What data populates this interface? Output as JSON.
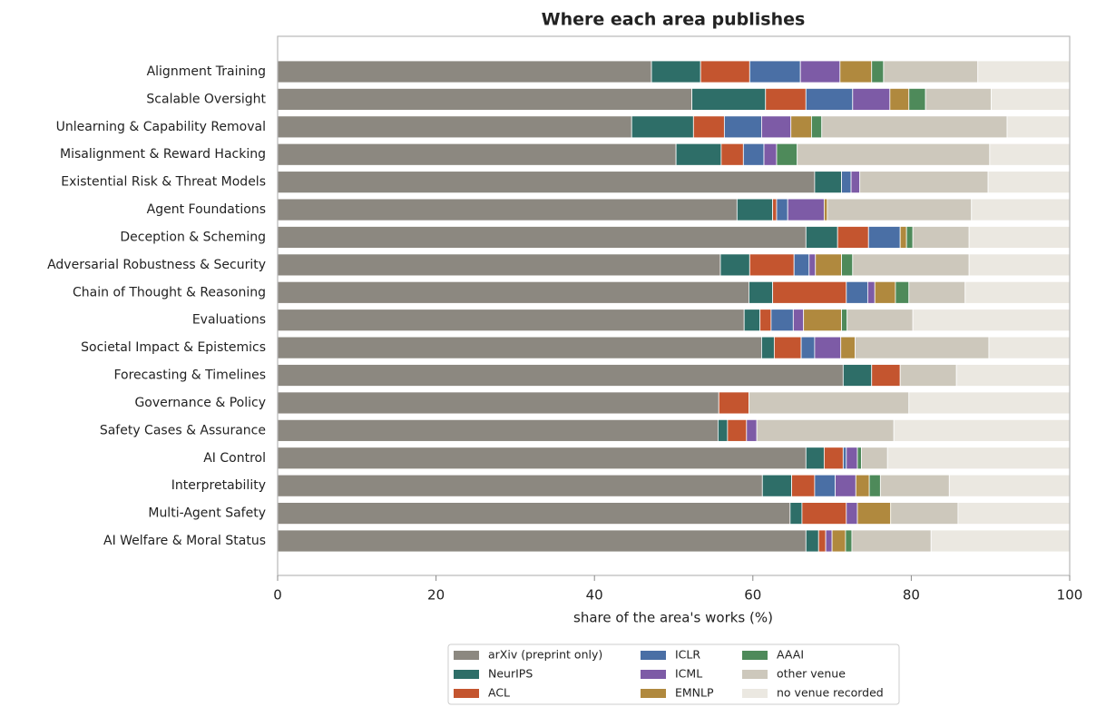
{
  "chart_data": {
    "type": "stacked_barh",
    "title": "Where each area publishes",
    "xlabel": "share of the area's works (%)",
    "categories": [
      "Alignment Training",
      "Scalable Oversight",
      "Unlearning & Capability Removal",
      "Misalignment & Reward Hacking",
      "Existential Risk & Threat Models",
      "Agent Foundations",
      "Deception & Scheming",
      "Adversarial Robustness & Security",
      "Chain of Thought & Reasoning",
      "Evaluations",
      "Societal Impact & Epistemics",
      "Forecasting & Timelines",
      "Governance & Policy",
      "Safety Cases & Assurance",
      "AI Control",
      "Interpretability",
      "Multi-Agent Safety",
      "AI Welfare & Moral Status"
    ],
    "series": [
      {
        "name": "arXiv (preprint only)",
        "color": "#8c8880",
        "values": [
          47.2,
          52.3,
          44.7,
          50.3,
          67.8,
          58.0,
          66.7,
          55.9,
          59.5,
          58.9,
          61.1,
          71.4,
          55.7,
          55.6,
          66.7,
          61.2,
          64.7,
          66.7
        ]
      },
      {
        "name": "NeurIPS",
        "color": "#2e6e68",
        "values": [
          6.2,
          9.3,
          7.8,
          5.7,
          3.4,
          4.5,
          4.0,
          3.7,
          3.0,
          2.0,
          1.6,
          3.6,
          0,
          1.2,
          2.3,
          3.7,
          1.5,
          1.6
        ]
      },
      {
        "name": "ACL",
        "color": "#c4552f",
        "values": [
          6.2,
          5.1,
          3.9,
          2.8,
          0,
          0.5,
          3.9,
          5.6,
          9.3,
          1.4,
          3.4,
          3.6,
          3.8,
          2.4,
          2.4,
          2.9,
          5.6,
          0.9
        ]
      },
      {
        "name": "ICLR",
        "color": "#4a6fa5",
        "values": [
          6.4,
          5.9,
          4.7,
          2.6,
          1.2,
          1.4,
          4.0,
          1.9,
          2.7,
          2.8,
          1.7,
          0,
          0,
          0,
          0.4,
          2.6,
          0,
          0
        ]
      },
      {
        "name": "ICML",
        "color": "#7d5ba6",
        "values": [
          5.0,
          4.7,
          3.7,
          1.6,
          1.1,
          4.6,
          0,
          0.8,
          0.9,
          1.3,
          3.3,
          0,
          0,
          1.3,
          1.4,
          2.6,
          1.4,
          0.8
        ]
      },
      {
        "name": "EMNLP",
        "color": "#b0893e",
        "values": [
          4.0,
          2.4,
          2.6,
          0,
          0,
          0.4,
          0.8,
          3.3,
          2.6,
          4.8,
          1.8,
          0,
          0,
          0,
          0,
          1.7,
          4.2,
          1.7
        ]
      },
      {
        "name": "AAAI",
        "color": "#4e8a5a",
        "values": [
          1.5,
          2.1,
          1.3,
          2.6,
          0,
          0,
          0.8,
          1.4,
          1.7,
          0.7,
          0,
          0,
          0,
          0,
          0.5,
          1.4,
          0,
          0.8
        ]
      },
      {
        "name": "other venue",
        "color": "#cdc8bc",
        "values": [
          11.9,
          8.3,
          23.4,
          24.3,
          16.2,
          18.2,
          7.1,
          14.7,
          7.1,
          8.3,
          16.9,
          7.1,
          20.2,
          17.3,
          3.3,
          8.7,
          8.5,
          10.0
        ]
      },
      {
        "name": "no venue recorded",
        "color": "#ebe8e1",
        "values": [
          11.6,
          9.9,
          7.9,
          10.1,
          10.3,
          12.4,
          12.7,
          12.7,
          13.2,
          19.8,
          10.2,
          14.3,
          20.3,
          22.2,
          23.0,
          15.2,
          14.1,
          17.5
        ]
      }
    ],
    "xlim": [
      0,
      100
    ],
    "xticks": [
      0,
      20,
      40,
      60,
      80,
      100
    ],
    "legend": "below"
  }
}
